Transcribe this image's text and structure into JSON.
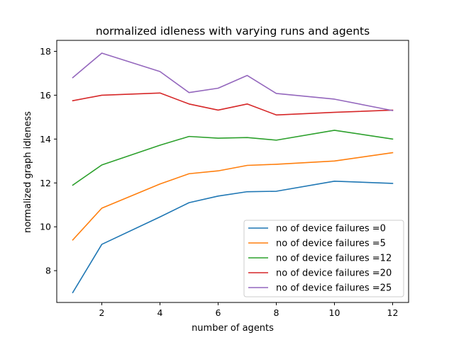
{
  "chart_data": {
    "type": "line",
    "title": "normalized idleness with varying runs and agents",
    "xlabel": "number of agents",
    "ylabel": "normalized graph idleness",
    "x": [
      1,
      2,
      4,
      5,
      6,
      7,
      8,
      10,
      12
    ],
    "xticks": [
      2,
      4,
      6,
      8,
      10,
      12
    ],
    "yticks": [
      8,
      10,
      12,
      14,
      16,
      18
    ],
    "xlim": [
      0.45,
      12.55
    ],
    "ylim": [
      6.55,
      18.5
    ],
    "grid": false,
    "legend_position": "lower-right",
    "series": [
      {
        "name": "no of device failures =0",
        "color": "#1f77b4",
        "values": [
          7.0,
          9.2,
          10.45,
          11.1,
          11.4,
          11.6,
          11.62,
          12.08,
          11.98
        ]
      },
      {
        "name": "no of device failures =5",
        "color": "#ff7f0e",
        "values": [
          9.4,
          10.85,
          11.95,
          12.42,
          12.55,
          12.8,
          12.85,
          13.0,
          13.38
        ]
      },
      {
        "name": "no of device failures =12",
        "color": "#2ca02c",
        "values": [
          11.9,
          12.82,
          13.72,
          14.12,
          14.04,
          14.07,
          13.95,
          14.4,
          14.0
        ]
      },
      {
        "name": "no of device failures =20",
        "color": "#d62728",
        "values": [
          15.75,
          16.0,
          16.1,
          15.6,
          15.32,
          15.6,
          15.1,
          15.22,
          15.32
        ]
      },
      {
        "name": "no of device failures =25",
        "color": "#9467bd",
        "values": [
          16.8,
          17.92,
          17.08,
          16.12,
          16.32,
          16.9,
          16.08,
          15.82,
          15.3
        ]
      }
    ]
  }
}
